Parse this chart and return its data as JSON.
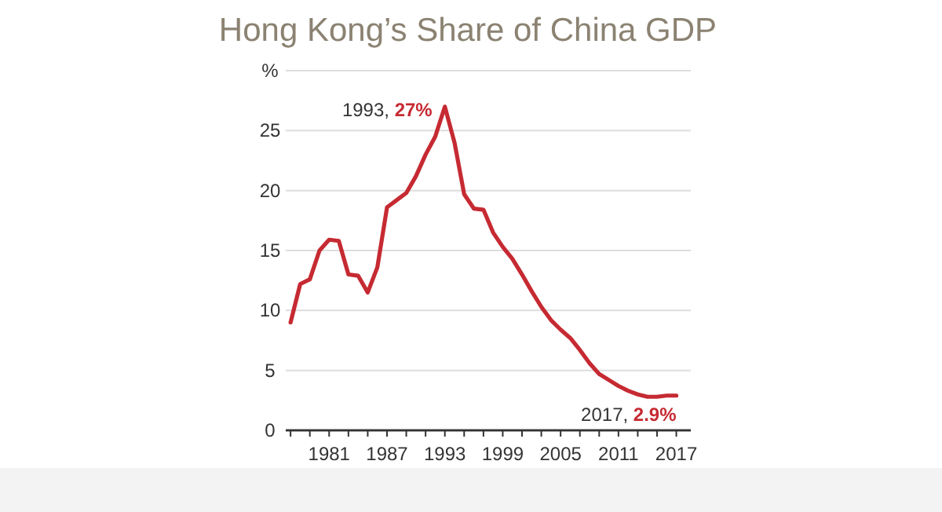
{
  "chart_data": {
    "type": "line",
    "title": "Hong Kong’s Share of China GDP",
    "x": [
      1977,
      1978,
      1979,
      1980,
      1981,
      1982,
      1983,
      1984,
      1985,
      1986,
      1987,
      1988,
      1989,
      1990,
      1991,
      1992,
      1993,
      1994,
      1995,
      1996,
      1997,
      1998,
      1999,
      2000,
      2001,
      2002,
      2003,
      2004,
      2005,
      2006,
      2007,
      2008,
      2009,
      2010,
      2011,
      2012,
      2013,
      2014,
      2015,
      2016,
      2017
    ],
    "series": [
      {
        "color": "#c62a32",
        "values": [
          9,
          12.2,
          12.6,
          15.0,
          15.9,
          15.8,
          13.0,
          12.9,
          11.5,
          13.6,
          18.6,
          19.2,
          19.8,
          21.2,
          23,
          24.5,
          27,
          24,
          19.7,
          18.5,
          18.4,
          16.5,
          15.3,
          14.3,
          13.0,
          11.6,
          10.3,
          9.2,
          8.4,
          7.7,
          6.7,
          5.6,
          4.7,
          4.2,
          3.7,
          3.3,
          3.0,
          2.8,
          2.8,
          2.9,
          2.9
        ]
      }
    ],
    "xlim": [
      1976.5,
      2018.5
    ],
    "xticks": [
      {
        "value": 1977,
        "label": null
      },
      {
        "value": 1979,
        "label": null
      },
      1981,
      {
        "value": 1983,
        "label": null
      },
      {
        "value": 1985,
        "label": null
      },
      1987,
      {
        "value": 1989,
        "label": null
      },
      {
        "value": 1991,
        "label": null
      },
      1993,
      {
        "value": 1995,
        "label": null
      },
      {
        "value": 1997,
        "label": null
      },
      1999,
      {
        "value": 2001,
        "label": null
      },
      {
        "value": 2003,
        "label": null
      },
      2005,
      {
        "value": 2007,
        "label": null
      },
      {
        "value": 2009,
        "label": null
      },
      2011,
      {
        "value": 2013,
        "label": null
      },
      {
        "value": 2015,
        "label": null
      },
      2017
    ],
    "ylim": [
      0,
      30
    ],
    "yticks": [
      0,
      5,
      10,
      15,
      20,
      25,
      {
        "value": 30,
        "label": "%"
      }
    ],
    "grid": "y",
    "line_style": "solid",
    "annotations": [
      {
        "text": "1993, 27%",
        "x": 1993,
        "y": 27
      },
      {
        "text": "2017, 2.9%",
        "x": 2017,
        "y": 2.9
      }
    ]
  }
}
